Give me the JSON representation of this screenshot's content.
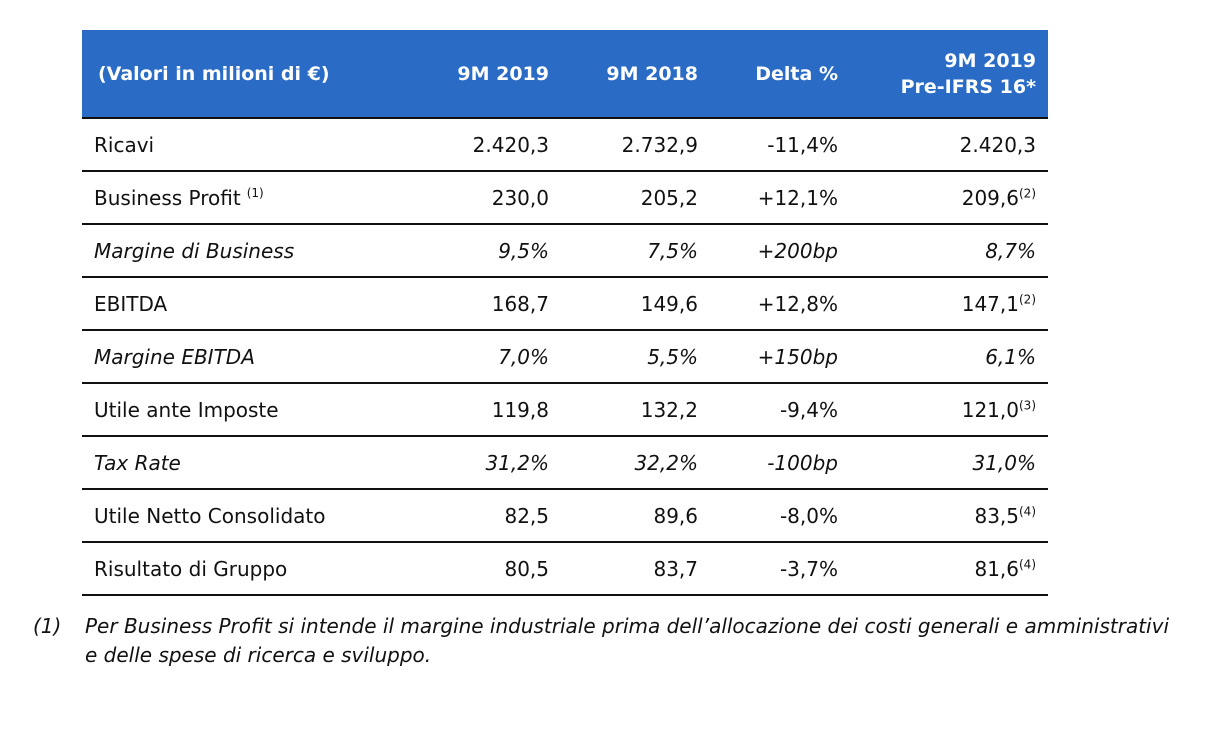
{
  "header": {
    "label": "(Valori in milioni di €)",
    "col1": "9M 2019",
    "col2": "9M 2018",
    "col3": "Delta %",
    "col4_line1": "9M 2019",
    "col4_line2": "Pre-IFRS 16*"
  },
  "rows": [
    {
      "label": "Ricavi",
      "label_note": "",
      "v1": "2.420,3",
      "v2": "2.732,9",
      "v3": "-11,4%",
      "v4": "2.420,3",
      "v4_note": ""
    },
    {
      "label": "Business Profit",
      "label_note": "(1)",
      "v1": "230,0",
      "v2": "205,2",
      "v3": "+12,1%",
      "v4": "209,6",
      "v4_note": "(2)"
    },
    {
      "label": "Margine di Business",
      "label_note": "",
      "v1": "9,5%",
      "v2": "7,5%",
      "v3": "+200bp",
      "v4": "8,7%",
      "v4_note": ""
    },
    {
      "label": "EBITDA",
      "label_note": "",
      "v1": "168,7",
      "v2": "149,6",
      "v3": "+12,8%",
      "v4": "147,1",
      "v4_note": "(2)"
    },
    {
      "label": "Margine EBITDA",
      "label_note": "",
      "v1": "7,0%",
      "v2": "5,5%",
      "v3": "+150bp",
      "v4": "6,1%",
      "v4_note": ""
    },
    {
      "label": "Utile ante Imposte",
      "label_note": "",
      "v1": "119,8",
      "v2": "132,2",
      "v3": "-9,4%",
      "v4": "121,0",
      "v4_note": "(3)"
    },
    {
      "label": "Tax Rate",
      "label_note": "",
      "v1": "31,2%",
      "v2": "32,2%",
      "v3": "-100bp",
      "v4": "31,0%",
      "v4_note": ""
    },
    {
      "label": "Utile Netto Consolidato",
      "label_note": "",
      "v1": "82,5",
      "v2": "89,6",
      "v3": "-8,0%",
      "v4": "83,5",
      "v4_note": "(4)"
    },
    {
      "label": "Risultato di Gruppo",
      "label_note": "",
      "v1": "80,5",
      "v2": "83,7",
      "v3": "-3,7%",
      "v4": "81,6",
      "v4_note": "(4)"
    }
  ],
  "footnote": {
    "number": "(1)",
    "text": "Per Business Profit si intende il margine industriale prima dell’allocazione dei costi generali e amministrativi e delle spese di ricerca e sviluppo."
  },
  "colors": {
    "header_bg": "#2a6bc6",
    "header_text": "#ffffff",
    "rule": "#111111"
  }
}
